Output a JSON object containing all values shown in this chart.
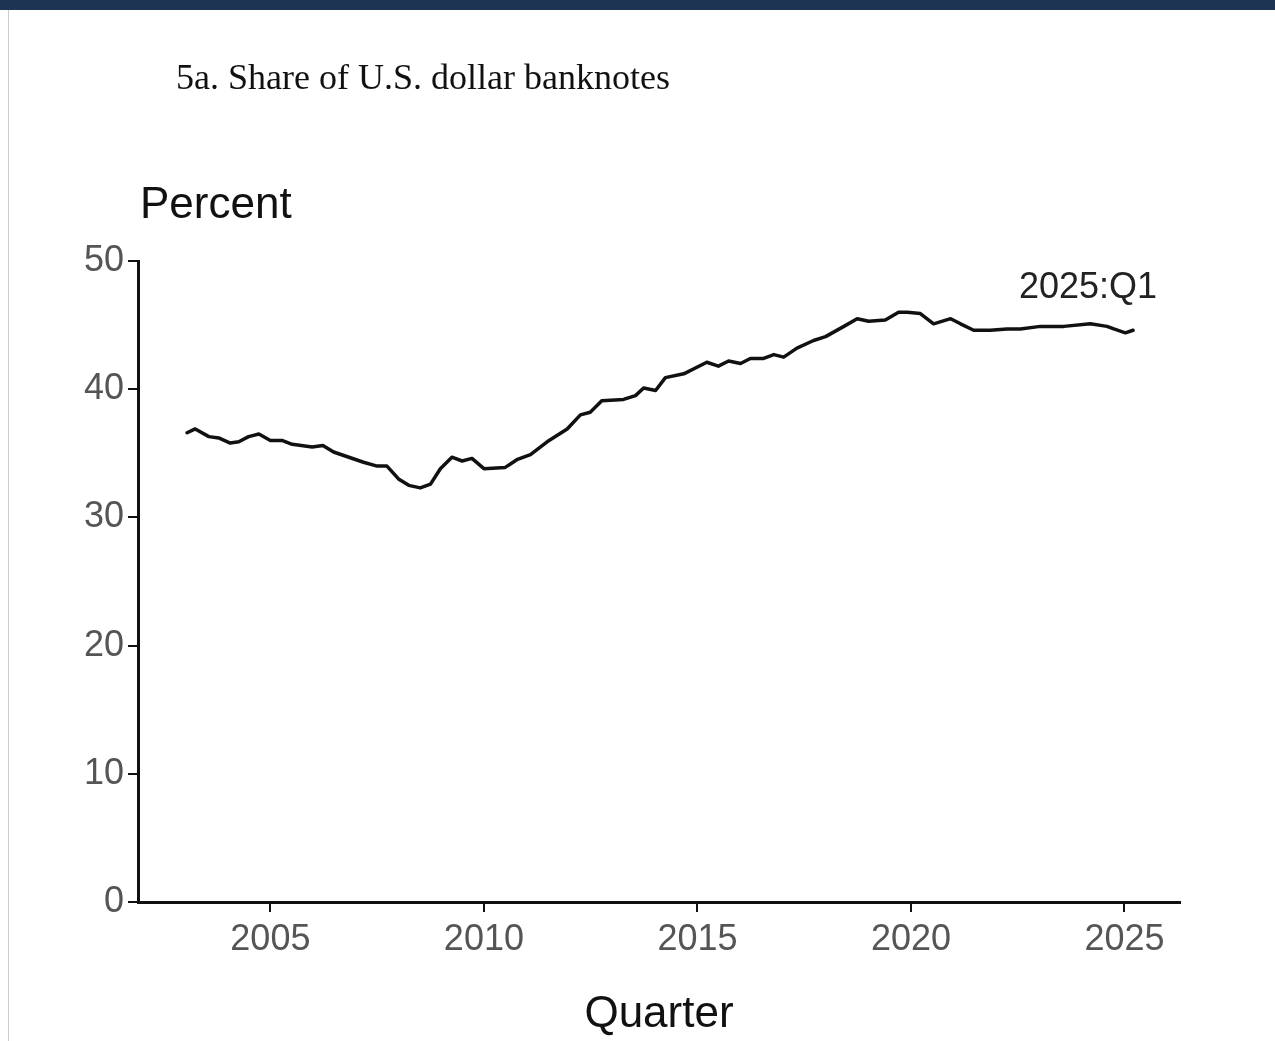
{
  "chart_data": {
    "type": "line",
    "title": "5a. Share of U.S. dollar banknotes",
    "xlabel": "Quarter",
    "ylabel": "Percent",
    "x": [
      2003.05,
      2003.24,
      2003.56,
      2003.79,
      2004.06,
      2004.26,
      2004.49,
      2004.73,
      2005.0,
      2005.27,
      2005.51,
      2005.98,
      2006.23,
      2006.48,
      2007.18,
      2007.5,
      2007.73,
      2008.0,
      2008.24,
      2008.51,
      2008.75,
      2008.98,
      2009.25,
      2009.49,
      2009.72,
      2010.0,
      2010.5,
      2010.77,
      2011.09,
      2011.48,
      2011.95,
      2012.26,
      2012.49,
      2012.76,
      2013.27,
      2013.55,
      2013.74,
      2014.02,
      2014.25,
      2014.68,
      2015.22,
      2015.49,
      2015.73,
      2016.01,
      2016.24,
      2016.55,
      2016.79,
      2017.02,
      2017.33,
      2017.72,
      2018.0,
      2018.43,
      2018.74,
      2019.01,
      2019.4,
      2019.71,
      2019.91,
      2020.22,
      2020.53,
      2020.93,
      2021.16,
      2021.47,
      2021.86,
      2022.25,
      2022.56,
      2023.03,
      2023.58,
      2024.2,
      2024.59,
      2024.75,
      2025.02,
      2025.2
    ],
    "series": [
      {
        "color": "#111111",
        "values": [
          36.6,
          36.9,
          36.3,
          36.2,
          35.8,
          35.9,
          36.3,
          36.5,
          36.0,
          36.0,
          35.7,
          35.5,
          35.6,
          35.1,
          34.3,
          34.0,
          34.0,
          33.0,
          32.5,
          32.3,
          32.6,
          33.8,
          34.7,
          34.4,
          34.6,
          33.8,
          33.9,
          34.5,
          34.9,
          35.9,
          36.9,
          38.0,
          38.2,
          39.1,
          39.2,
          39.5,
          40.1,
          39.9,
          40.9,
          41.2,
          42.1,
          41.8,
          42.2,
          42.0,
          42.4,
          42.4,
          42.7,
          42.5,
          43.2,
          43.8,
          44.1,
          44.9,
          45.5,
          45.3,
          45.4,
          46.0,
          46.0,
          45.9,
          45.1,
          45.5,
          45.1,
          44.6,
          44.6,
          44.7,
          44.7,
          44.9,
          44.9,
          45.1,
          44.9,
          44.7,
          44.4,
          44.6
        ]
      }
    ],
    "xlim": [
      2001.9,
      2026.3
    ],
    "xticks": [
      2005,
      2010,
      2015,
      2020,
      2025
    ],
    "ylim": [
      0,
      50
    ],
    "yticks": [
      0,
      10,
      20,
      30,
      40,
      50
    ],
    "grid": false,
    "legend": false,
    "marker": "none",
    "line_style": "solid",
    "annotations": [
      {
        "text": "2025:Q1",
        "x": 2025.2,
        "y": 44.6
      }
    ]
  }
}
